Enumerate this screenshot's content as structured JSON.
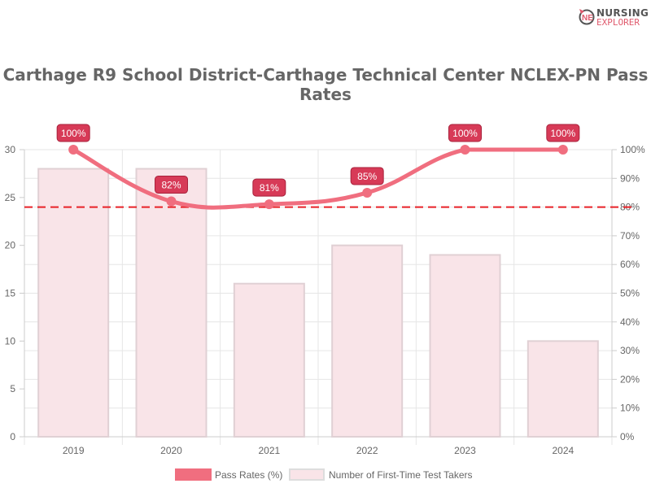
{
  "logo": {
    "line1": "NURSING",
    "line2": "EXPLORER"
  },
  "chart_data": {
    "type": "bar+line",
    "title": "Carthage R9 School District-Carthage Technical Center NCLEX-PN Pass Rates",
    "categories": [
      "2019",
      "2020",
      "2021",
      "2022",
      "2023",
      "2024"
    ],
    "series": [
      {
        "name": "Pass Rates (%)",
        "type": "line",
        "axis": "right",
        "values": [
          100,
          82,
          81,
          85,
          100,
          100
        ],
        "labels": [
          "100%",
          "82%",
          "81%",
          "85%",
          "100%",
          "100%"
        ],
        "color": "#f06e7f"
      },
      {
        "name": "Number of First-Time Test Takers",
        "type": "bar",
        "axis": "left",
        "values": [
          28,
          28,
          16,
          20,
          19,
          10
        ],
        "color": "#f9e4e8"
      }
    ],
    "left_axis": {
      "ylim": [
        0,
        30
      ],
      "ticks": [
        "0",
        "5",
        "10",
        "15",
        "20",
        "25",
        "30"
      ]
    },
    "right_axis": {
      "ylim": [
        0,
        100
      ],
      "ticks": [
        "0%",
        "10%",
        "20%",
        "30%",
        "40%",
        "50%",
        "60%",
        "70%",
        "80%",
        "90%",
        "100%"
      ]
    },
    "reference_line": {
      "value": 80,
      "axis": "right",
      "style": "dashed",
      "color": "#e82127"
    },
    "grid": true,
    "legend": "bottom"
  }
}
